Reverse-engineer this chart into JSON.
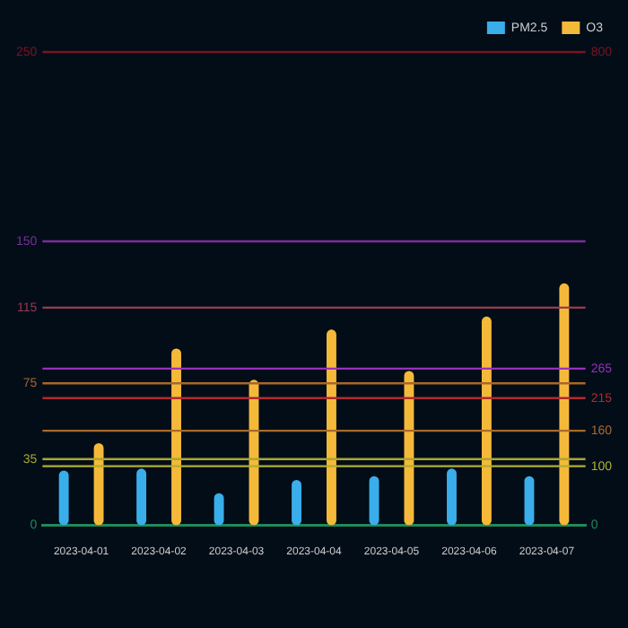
{
  "chart_data": {
    "type": "bar",
    "categories": [
      "2023-04-01",
      "2023-04-02",
      "2023-04-03",
      "2023-04-04",
      "2023-04-05",
      "2023-04-06",
      "2023-04-07"
    ],
    "series": [
      {
        "name": "PM2.5",
        "color": "#3aaeea",
        "values": [
          29,
          30,
          17,
          24,
          26,
          30,
          26
        ]
      },
      {
        "name": "O3",
        "color": "#f5b93a",
        "axis": "y2",
        "values": [
          139,
          299,
          246,
          331,
          261,
          353,
          409
        ]
      }
    ],
    "ylim": [
      0,
      250
    ],
    "yticks": [
      0,
      35,
      75,
      115,
      150,
      250
    ],
    "y2lim": [
      0,
      800
    ],
    "y2ticks": [
      0,
      100,
      160,
      215,
      265,
      800
    ],
    "ref_lines": [
      {
        "axis": "y",
        "value": 35,
        "color": "#a8a830"
      },
      {
        "axis": "y",
        "value": 75,
        "color": "#a8682a"
      },
      {
        "axis": "y",
        "value": 115,
        "color": "#9a3a50"
      },
      {
        "axis": "y",
        "value": 150,
        "color": "#7b2d9a"
      },
      {
        "axis": "y",
        "value": 250,
        "color": "#7a1420"
      },
      {
        "axis": "y2",
        "value": 100,
        "color": "#b0b030"
      },
      {
        "axis": "y2",
        "value": 160,
        "color": "#a86a2a"
      },
      {
        "axis": "y2",
        "value": 215,
        "color": "#b02a30"
      },
      {
        "axis": "y2",
        "value": 265,
        "color": "#9a2fc0"
      }
    ],
    "legend": "top right"
  }
}
